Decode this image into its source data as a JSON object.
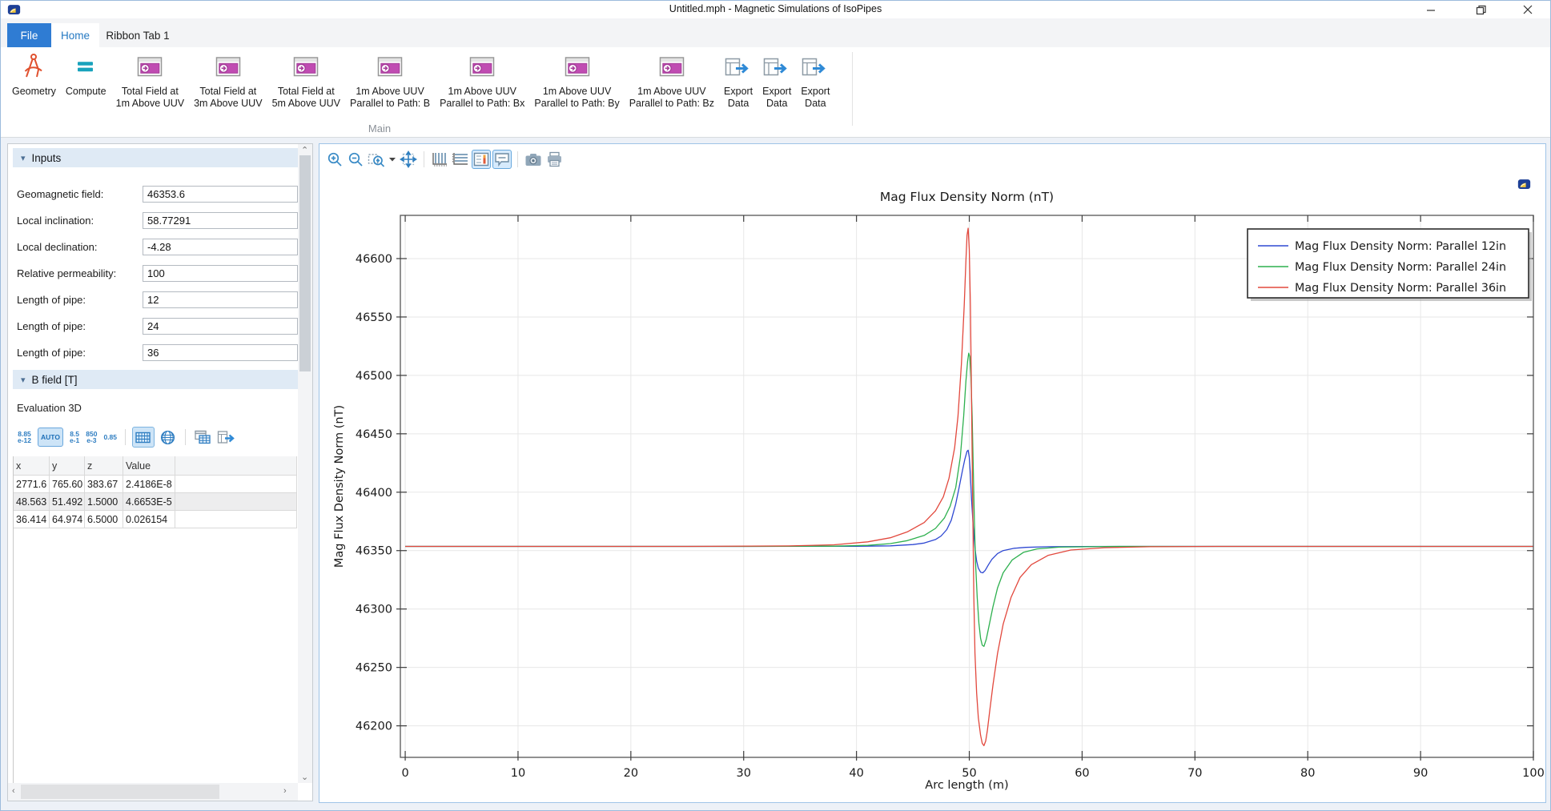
{
  "window": {
    "title": "Untitled.mph - Magnetic Simulations of IsoPipes",
    "controls": [
      {
        "name": "minimize"
      },
      {
        "name": "restore"
      },
      {
        "name": "close"
      }
    ]
  },
  "tabs": [
    {
      "label": "File",
      "style": "file"
    },
    {
      "label": "Home",
      "style": "active"
    },
    {
      "label": "Ribbon Tab 1",
      "style": "plain"
    }
  ],
  "ribbon": {
    "group_label": "Main",
    "buttons": [
      {
        "icon": "geometry-icon",
        "lines": [
          "Geometry"
        ]
      },
      {
        "icon": "compute-icon",
        "lines": [
          "Compute"
        ]
      },
      {
        "icon": "plot-window-icon",
        "lines": [
          "Total Field at",
          "1m Above UUV"
        ]
      },
      {
        "icon": "plot-window-icon",
        "lines": [
          "Total Field at",
          "3m Above UUV"
        ]
      },
      {
        "icon": "plot-window-icon",
        "lines": [
          "Total Field at",
          "5m Above UUV"
        ]
      },
      {
        "icon": "plot-window-icon",
        "lines": [
          "1m Above UUV",
          "Parallel to Path: B"
        ]
      },
      {
        "icon": "plot-window-icon",
        "lines": [
          "1m Above UUV",
          "Parallel to Path: Bx"
        ]
      },
      {
        "icon": "plot-window-icon",
        "lines": [
          "1m Above UUV",
          "Parallel to Path: By"
        ]
      },
      {
        "icon": "plot-window-icon",
        "lines": [
          "1m Above UUV",
          "Parallel to Path: Bz"
        ]
      },
      {
        "icon": "export-data-icon",
        "lines": [
          "Export",
          "Data"
        ]
      },
      {
        "icon": "export-data-icon",
        "lines": [
          "Export",
          "Data"
        ]
      },
      {
        "icon": "export-data-icon",
        "lines": [
          "Export",
          "Data"
        ]
      }
    ]
  },
  "inputs": {
    "header": "Inputs",
    "fields": [
      {
        "label": "Geomagnetic field:",
        "value": "46353.6"
      },
      {
        "label": "Local inclination:",
        "value": "58.77291"
      },
      {
        "label": "Local declination:",
        "value": "-4.28"
      },
      {
        "label": "Relative permeability:",
        "value": "100"
      },
      {
        "label": "Length of pipe:",
        "value": "12"
      },
      {
        "label": "Length of pipe:",
        "value": "24"
      },
      {
        "label": "Length of pipe:",
        "value": "36"
      }
    ]
  },
  "bfield": {
    "header": "B field [T]",
    "subtitle": "Evaluation 3D",
    "toolbar": [
      {
        "type": "numtext",
        "lines": [
          "8.85",
          "e-12"
        ]
      },
      {
        "type": "button",
        "label": "AUTO",
        "pressed": true
      },
      {
        "type": "numtext",
        "lines": [
          "8.5",
          "e-1"
        ]
      },
      {
        "type": "numtext",
        "lines": [
          "850",
          "e-3"
        ]
      },
      {
        "type": "numtext",
        "lines": [
          "0.85"
        ]
      },
      {
        "type": "sep"
      },
      {
        "type": "icon",
        "name": "table-grid-icon",
        "pressed": true
      },
      {
        "type": "icon",
        "name": "globe-icon",
        "pressed": false
      },
      {
        "type": "sep"
      },
      {
        "type": "icon",
        "name": "copy-table-icon",
        "pressed": false
      },
      {
        "type": "icon",
        "name": "export-table-icon",
        "pressed": false
      }
    ],
    "table": {
      "headers": [
        "x",
        "y",
        "z",
        "Value"
      ],
      "rows": [
        [
          "2771.6",
          "765.60",
          "383.67",
          "2.4186E-8"
        ],
        [
          "48.563",
          "51.492",
          "1.5000",
          "4.6653E-5"
        ],
        [
          "36.414",
          "64.974",
          "6.5000",
          "0.026154"
        ]
      ]
    }
  },
  "graphics_toolbar": [
    {
      "type": "icon",
      "name": "zoom-in-icon"
    },
    {
      "type": "icon",
      "name": "zoom-out-icon"
    },
    {
      "type": "icon",
      "name": "zoom-box-icon"
    },
    {
      "type": "icon",
      "name": "dropdown-caret-icon"
    },
    {
      "type": "icon",
      "name": "zoom-extents-icon"
    },
    {
      "type": "sep"
    },
    {
      "type": "icon",
      "name": "x-grid-icon"
    },
    {
      "type": "icon",
      "name": "y-grid-icon"
    },
    {
      "type": "icon",
      "name": "legend-toggle-icon",
      "pressed": true
    },
    {
      "type": "icon",
      "name": "tooltip-toggle-icon",
      "pressed": true
    },
    {
      "type": "sep"
    },
    {
      "type": "icon",
      "name": "snapshot-icon"
    },
    {
      "type": "icon",
      "name": "print-icon"
    }
  ],
  "chart_data": {
    "type": "line",
    "title": "Mag Flux Density Norm (nT)",
    "xlabel": "Arc length (m)",
    "ylabel": "Mag Flux Density Norm (nT)",
    "xlim": [
      -0.43,
      100
    ],
    "ylim": [
      46173,
      46637
    ],
    "xticks": [
      0,
      10,
      20,
      30,
      40,
      50,
      60,
      70,
      80,
      90,
      100
    ],
    "yticks": [
      46200,
      46250,
      46300,
      46350,
      46400,
      46450,
      46500,
      46550,
      46600
    ],
    "grid": true,
    "legend_position": "top-right",
    "baseline": 46353.6,
    "series": [
      {
        "name": "Mag Flux Density Norm: Parallel 12in",
        "color": "#2e48d2",
        "points": [
          [
            0,
            46353.6
          ],
          [
            30,
            46353.6
          ],
          [
            40,
            46353.7
          ],
          [
            43,
            46354.1
          ],
          [
            45,
            46355.2
          ],
          [
            46,
            46356.5
          ],
          [
            47,
            46359.5
          ],
          [
            47.5,
            46362.5
          ],
          [
            48,
            46368
          ],
          [
            48.4,
            46376
          ],
          [
            48.8,
            46390
          ],
          [
            49.1,
            46404
          ],
          [
            49.4,
            46419
          ],
          [
            49.6,
            46428
          ],
          [
            49.8,
            46435
          ],
          [
            49.9,
            46436
          ],
          [
            50,
            46430
          ],
          [
            50.1,
            46415
          ],
          [
            50.2,
            46394
          ],
          [
            50.35,
            46370
          ],
          [
            50.5,
            46352
          ],
          [
            50.65,
            46341
          ],
          [
            50.8,
            46335
          ],
          [
            51,
            46331.5
          ],
          [
            51.2,
            46331
          ],
          [
            51.4,
            46333
          ],
          [
            51.7,
            46338
          ],
          [
            52,
            46342.5
          ],
          [
            52.5,
            46347.5
          ],
          [
            53,
            46350
          ],
          [
            54,
            46352
          ],
          [
            55,
            46352.8
          ],
          [
            57,
            46353.3
          ],
          [
            60,
            46353.5
          ],
          [
            70,
            46353.6
          ],
          [
            100,
            46353.6
          ]
        ]
      },
      {
        "name": "Mag Flux Density Norm: Parallel 24in",
        "color": "#2db04e",
        "points": [
          [
            0,
            46353.6
          ],
          [
            30,
            46353.6
          ],
          [
            38,
            46353.8
          ],
          [
            41,
            46354.5
          ],
          [
            43,
            46356
          ],
          [
            44.5,
            46358.5
          ],
          [
            46,
            46363
          ],
          [
            47,
            46369
          ],
          [
            47.8,
            46378
          ],
          [
            48.3,
            46388
          ],
          [
            48.8,
            46404
          ],
          [
            49.2,
            46430
          ],
          [
            49.5,
            46465
          ],
          [
            49.7,
            46495
          ],
          [
            49.85,
            46512
          ],
          [
            49.95,
            46519
          ],
          [
            50.05,
            46516
          ],
          [
            50.15,
            46498
          ],
          [
            50.25,
            46465
          ],
          [
            50.35,
            46420
          ],
          [
            50.45,
            46375
          ],
          [
            50.55,
            46340
          ],
          [
            50.7,
            46310
          ],
          [
            50.85,
            46288
          ],
          [
            51,
            46275
          ],
          [
            51.15,
            46269
          ],
          [
            51.3,
            46268
          ],
          [
            51.5,
            46274
          ],
          [
            51.8,
            46288
          ],
          [
            52.1,
            46302
          ],
          [
            52.5,
            46318
          ],
          [
            53,
            46331
          ],
          [
            53.8,
            46342
          ],
          [
            54.8,
            46348.5
          ],
          [
            56,
            46351.5
          ],
          [
            58,
            46353
          ],
          [
            62,
            46353.5
          ],
          [
            70,
            46353.6
          ],
          [
            100,
            46353.6
          ]
        ]
      },
      {
        "name": "Mag Flux Density Norm: Parallel 36in",
        "color": "#e2483d",
        "points": [
          [
            0,
            46353.6
          ],
          [
            25,
            46353.6
          ],
          [
            34,
            46354
          ],
          [
            38,
            46355
          ],
          [
            41,
            46357.5
          ],
          [
            43,
            46361
          ],
          [
            44.5,
            46366
          ],
          [
            46,
            46374
          ],
          [
            47,
            46384
          ],
          [
            47.7,
            46396
          ],
          [
            48.2,
            46412
          ],
          [
            48.7,
            46438
          ],
          [
            49,
            46465
          ],
          [
            49.3,
            46510
          ],
          [
            49.55,
            46560
          ],
          [
            49.7,
            46598
          ],
          [
            49.8,
            46620
          ],
          [
            49.9,
            46626
          ],
          [
            50,
            46608
          ],
          [
            50.1,
            46560
          ],
          [
            50.2,
            46480
          ],
          [
            50.3,
            46390
          ],
          [
            50.4,
            46310
          ],
          [
            50.5,
            46262
          ],
          [
            50.65,
            46228
          ],
          [
            50.8,
            46207
          ],
          [
            51,
            46192
          ],
          [
            51.15,
            46185
          ],
          [
            51.3,
            46183
          ],
          [
            51.45,
            46187
          ],
          [
            51.6,
            46196
          ],
          [
            51.8,
            46212
          ],
          [
            52.1,
            46235
          ],
          [
            52.5,
            46262
          ],
          [
            53,
            46287
          ],
          [
            53.7,
            46310
          ],
          [
            54.5,
            46327
          ],
          [
            55.5,
            46338
          ],
          [
            57,
            46346
          ],
          [
            59,
            46350.5
          ],
          [
            62,
            46352.5
          ],
          [
            66,
            46353.3
          ],
          [
            72,
            46353.6
          ],
          [
            100,
            46353.6
          ]
        ]
      }
    ]
  }
}
